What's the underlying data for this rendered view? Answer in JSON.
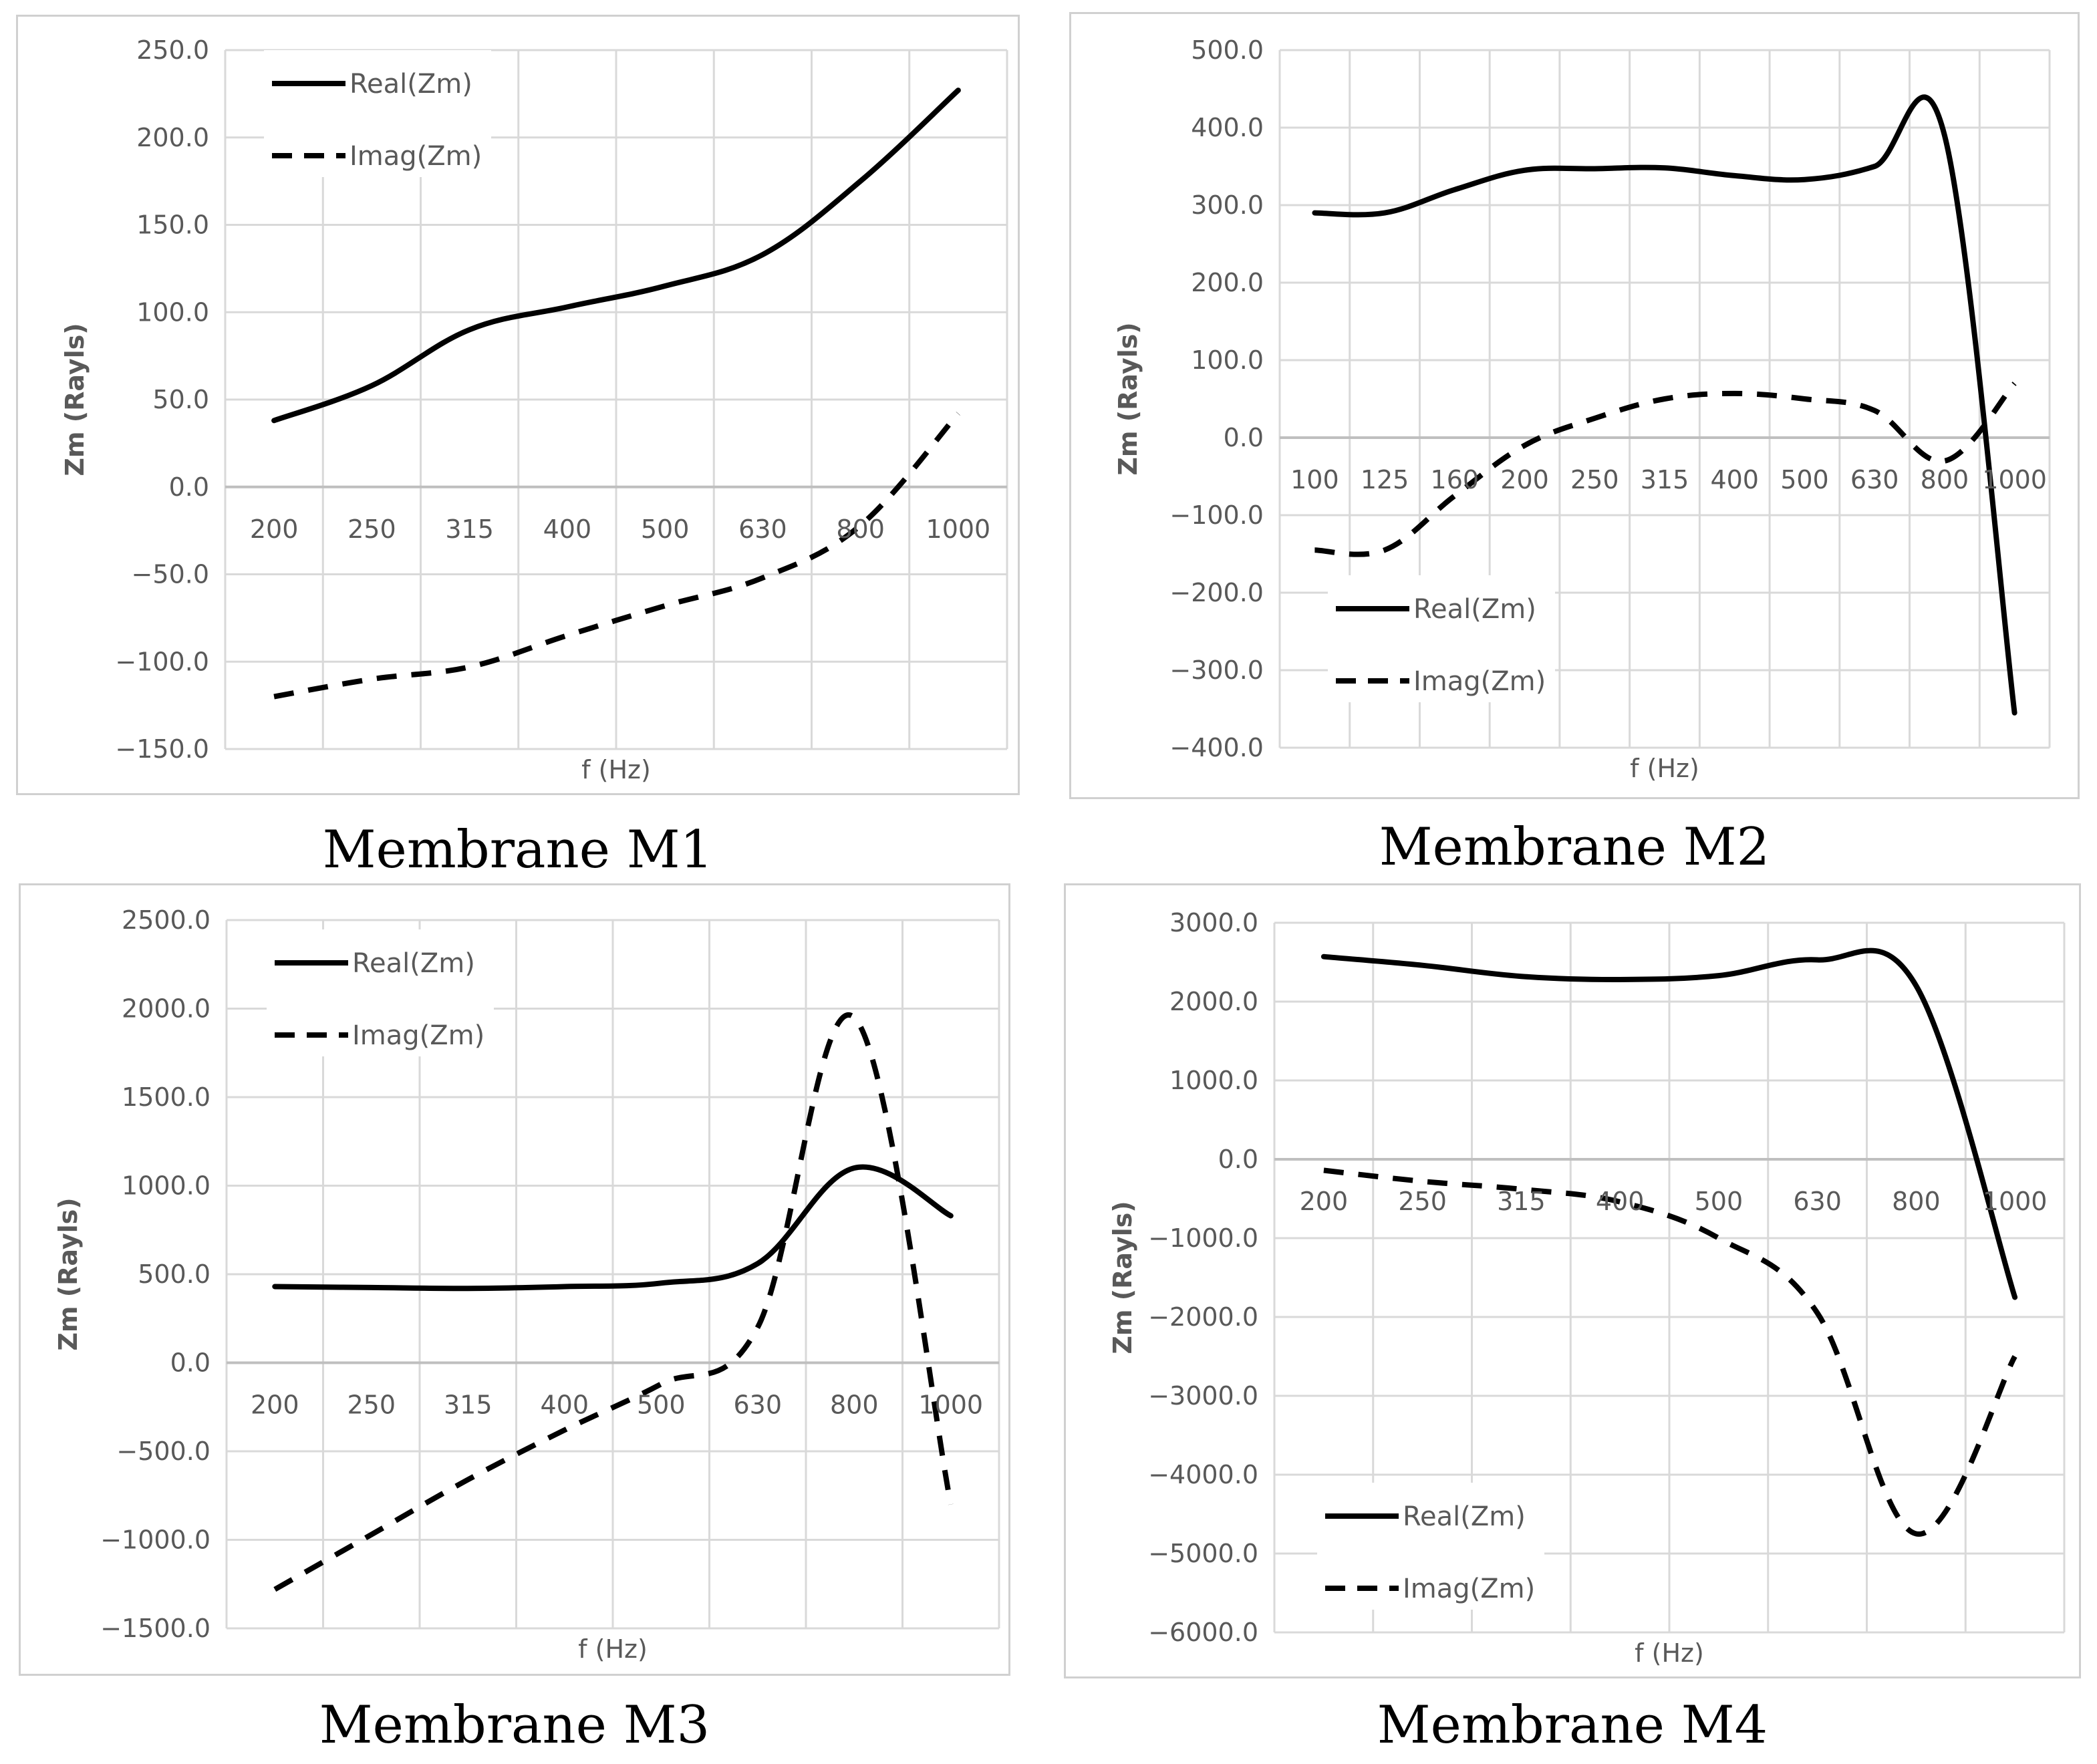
{
  "chart_data": [
    {
      "type": "line",
      "title": "Membrane M1",
      "xlabel": "f (Hz)",
      "ylabel": "Zm (Rayls)",
      "categories": [
        "200",
        "250",
        "315",
        "400",
        "500",
        "630",
        "800",
        "1000"
      ],
      "ylim": [
        -150,
        250
      ],
      "yticks": [
        "250.0",
        "200.0",
        "150.0",
        "100.0",
        "50.0",
        "0.0",
        "−50.0",
        "−100.0",
        "−150.0"
      ],
      "legend_position": "top-left",
      "series": [
        {
          "name": "Real(Zm)",
          "style": "solid",
          "values": [
            38,
            58,
            90,
            103,
            115,
            133,
            175,
            227
          ]
        },
        {
          "name": "Imag(Zm)",
          "style": "dashed",
          "values": [
            -120,
            -110,
            -103,
            -85,
            -68,
            -52,
            -22,
            42
          ]
        }
      ]
    },
    {
      "type": "line",
      "title": "Membrane M2",
      "xlabel": "f (Hz)",
      "ylabel": "Zm (Rayls)",
      "categories": [
        "100",
        "125",
        "160",
        "200",
        "250",
        "315",
        "400",
        "500",
        "630",
        "800",
        "1000"
      ],
      "ylim": [
        -400,
        500
      ],
      "yticks": [
        "500.0",
        "400.0",
        "300.0",
        "200.0",
        "100.0",
        "0.0",
        "−100.0",
        "−200.0",
        "−300.0",
        "−400.0"
      ],
      "legend_position": "bottom-left",
      "series": [
        {
          "name": "Real(Zm)",
          "style": "solid",
          "values": [
            290,
            290,
            320,
            345,
            347,
            348,
            338,
            333,
            350,
            390,
            -355
          ]
        },
        {
          "name": "Imag(Zm)",
          "style": "dashed",
          "values": [
            -145,
            -145,
            -75,
            -10,
            25,
            50,
            57,
            50,
            35,
            -30,
            70
          ]
        }
      ]
    },
    {
      "type": "line",
      "title": "Membrane M3",
      "xlabel": "f (Hz)",
      "ylabel": "Zm (Rayls)",
      "categories": [
        "200",
        "250",
        "315",
        "400",
        "500",
        "630",
        "800",
        "1000"
      ],
      "ylim": [
        -1500,
        2500
      ],
      "yticks": [
        "2500.0",
        "2000.0",
        "1500.0",
        "1000.0",
        "500.0",
        "0.0",
        "−500.0",
        "−1000.0",
        "−1500.0"
      ],
      "legend_position": "top-left",
      "series": [
        {
          "name": "Real(Zm)",
          "style": "solid",
          "values": [
            430,
            425,
            420,
            430,
            450,
            560,
            1100,
            830
          ]
        },
        {
          "name": "Imag(Zm)",
          "style": "dashed",
          "values": [
            -1280,
            -970,
            -660,
            -380,
            -120,
            200,
            1950,
            -800
          ]
        }
      ]
    },
    {
      "type": "line",
      "title": "Membrane M4",
      "xlabel": "f (Hz)",
      "ylabel": "Zm (Rayls)",
      "categories": [
        "200",
        "250",
        "315",
        "400",
        "500",
        "630",
        "800",
        "1000"
      ],
      "ylim": [
        -6000,
        3000
      ],
      "yticks": [
        "3000.0",
        "2000.0",
        "1000.0",
        "0.0",
        "−1000.0",
        "−2000.0",
        "−3000.0",
        "−4000.0",
        "−5000.0",
        "−6000.0"
      ],
      "legend_position": "middle-left",
      "series": [
        {
          "name": "Real(Zm)",
          "style": "solid",
          "values": [
            2570,
            2460,
            2320,
            2280,
            2330,
            2530,
            2200,
            -1750
          ]
        },
        {
          "name": "Imag(Zm)",
          "style": "dashed",
          "values": [
            -140,
            -280,
            -380,
            -540,
            -1000,
            -1950,
            -4750,
            -2500
          ]
        }
      ]
    }
  ]
}
